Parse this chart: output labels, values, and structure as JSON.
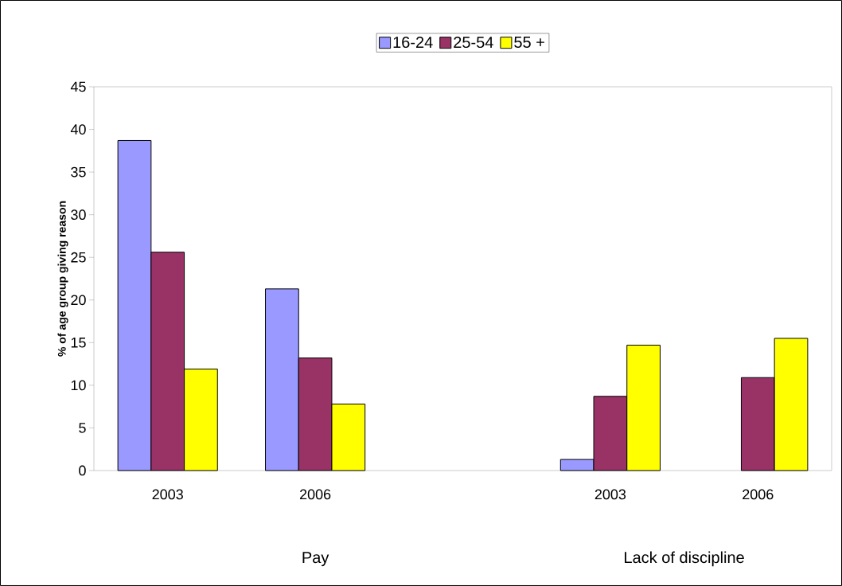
{
  "chart_data": {
    "type": "bar",
    "ylabel": "% of age group giving reason",
    "categories": [
      "2003",
      "2006",
      null,
      "2003",
      "2006"
    ],
    "series": [
      {
        "name": "16-24",
        "color": "#9999ff",
        "values": [
          38.7,
          21.3,
          null,
          1.3,
          null
        ]
      },
      {
        "name": "25-54",
        "color": "#993366",
        "values": [
          25.6,
          13.2,
          null,
          8.7,
          10.9
        ]
      },
      {
        "name": "55 +",
        "color": "#ffff00",
        "values": [
          11.9,
          7.8,
          null,
          14.7,
          15.5
        ]
      }
    ],
    "ylim": [
      0,
      45
    ],
    "yticks": [
      0,
      5,
      10,
      15,
      20,
      25,
      30,
      35,
      40,
      45
    ],
    "legend": "top",
    "grid": false,
    "annotations": [
      "Pay",
      "Lack of discipline"
    ]
  }
}
